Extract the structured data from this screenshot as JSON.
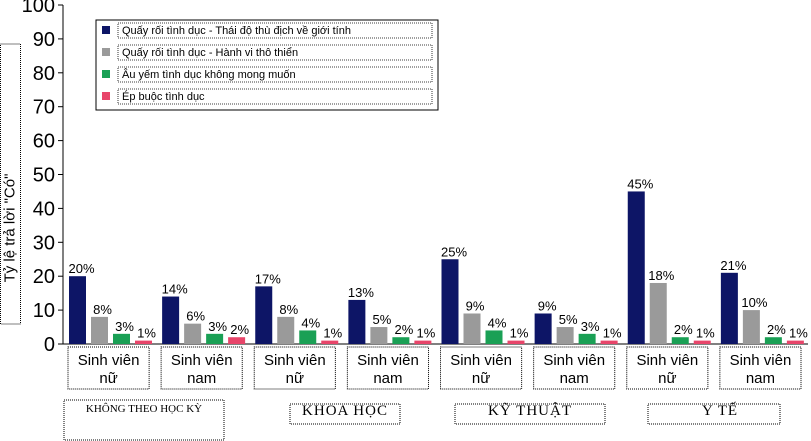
{
  "chart_data": {
    "type": "bar",
    "title": "",
    "ylabel": "Tỷ lệ trả lời \"Có\"",
    "xlabel": "",
    "ylim": [
      0,
      100
    ],
    "yticks": [
      0,
      10,
      20,
      30,
      40,
      50,
      60,
      70,
      80,
      90,
      100
    ],
    "grid": false,
    "legend_position": "top-left",
    "categories": [
      {
        "label_line1": "Sinh viên",
        "label_line2": "nữ",
        "group": "KHÔNG THEO HỌC KỲ"
      },
      {
        "label_line1": "Sinh viên",
        "label_line2": "nam",
        "group": "KHÔNG THEO HỌC KỲ"
      },
      {
        "label_line1": "Sinh viên",
        "label_line2": "nữ",
        "group": "KHOA  HỌC"
      },
      {
        "label_line1": "Sinh viên",
        "label_line2": "nam",
        "group": "KHOA  HỌC"
      },
      {
        "label_line1": "Sinh viên",
        "label_line2": "nữ",
        "group": "KỸ  THUẬT"
      },
      {
        "label_line1": "Sinh viên",
        "label_line2": "nam",
        "group": "KỸ  THUẬT"
      },
      {
        "label_line1": "Sinh viên",
        "label_line2": "nữ",
        "group": "Y  TẾ"
      },
      {
        "label_line1": "Sinh viên",
        "label_line2": "nam",
        "group": "Y  TẾ"
      }
    ],
    "groups": [
      "KHÔNG THEO HỌC KỲ",
      "KHOA  HỌC",
      "KỸ  THUẬT",
      "Y  TẾ"
    ],
    "series": [
      {
        "name": "Quấy rối tình dục - Thái độ thù địch về giới tính",
        "color": "#0d1566",
        "values": [
          20,
          14,
          17,
          13,
          25,
          9,
          45,
          21
        ],
        "labels": [
          "20%",
          "14%",
          "17%",
          "13%",
          "25%",
          "9%",
          "45%",
          "21%"
        ]
      },
      {
        "name": "Quấy rối tình dục - Hành vi thô thiển",
        "color": "#9a9a9a",
        "values": [
          8,
          6,
          8,
          5,
          9,
          5,
          18,
          10
        ],
        "labels": [
          "8%",
          "6%",
          "8%",
          "5%",
          "9%",
          "5%",
          "18%",
          "10%"
        ]
      },
      {
        "name": "Âu yếm tình dục không mong muốn",
        "color": "#1aa055",
        "values": [
          3,
          3,
          4,
          2,
          4,
          3,
          2,
          2
        ],
        "labels": [
          "3%",
          "3%",
          "4%",
          "2%",
          "4%",
          "3%",
          "2%",
          "2%"
        ]
      },
      {
        "name": "Ép buộc tình dục",
        "color": "#e8456a",
        "values": [
          1,
          2,
          1,
          1,
          1,
          1,
          1,
          1
        ],
        "labels": [
          "1%",
          "2%",
          "1%",
          "1%",
          "1%",
          "1%",
          "1%",
          "1%"
        ]
      }
    ]
  }
}
